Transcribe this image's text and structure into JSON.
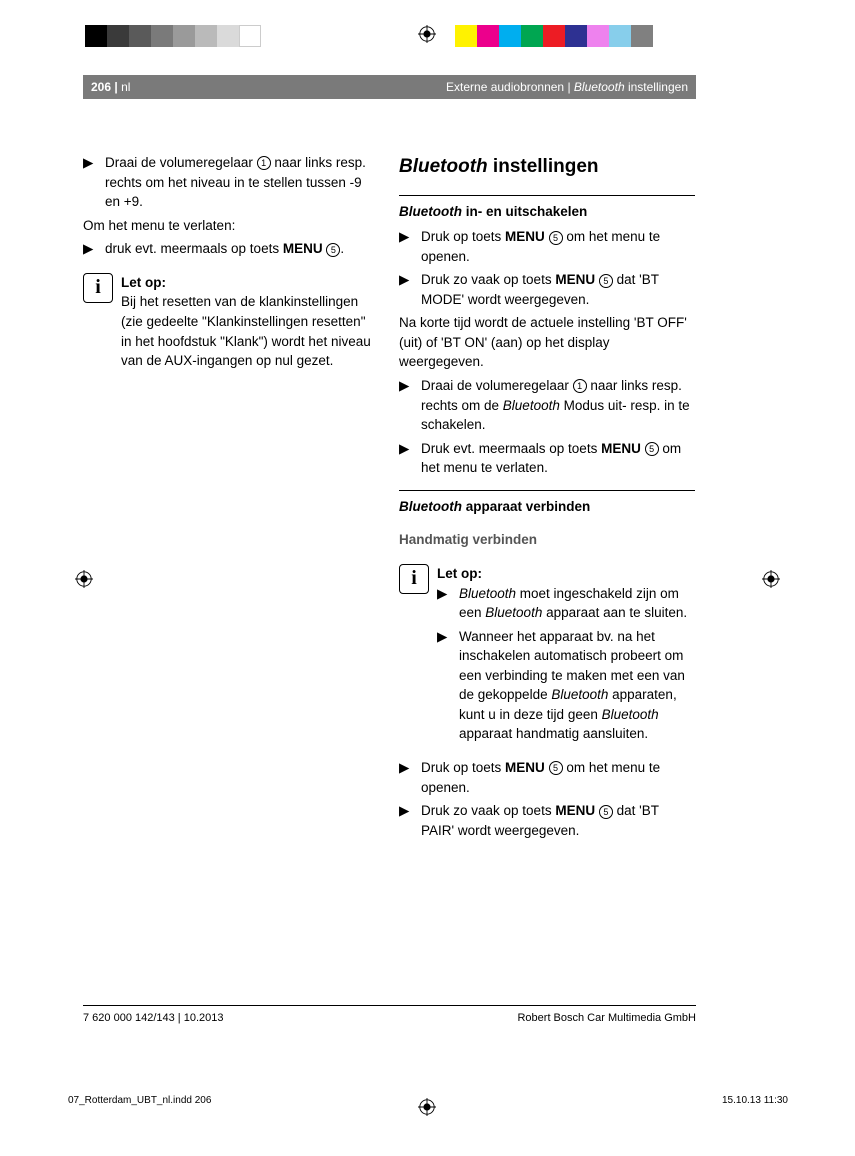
{
  "colorbar_left": [
    "#000000",
    "#3a3a3a",
    "#5a5a5a",
    "#7a7a7a",
    "#9a9a9a",
    "#bababa",
    "#dadada",
    "#ffffff"
  ],
  "colorbar_right": [
    "#fff200",
    "#ec008c",
    "#00aeef",
    "#00a651",
    "#ed1c24",
    "#2e3192",
    "#ee82ee",
    "#87ceeb",
    "#808080"
  ],
  "header": {
    "page_num": "206",
    "lang": "nl",
    "section": "Externe audiobronnen",
    "subsection": "Bluetooth",
    "subsection_suffix": " instellingen"
  },
  "col1": {
    "b1_pre": "Draai de volumeregelaar ",
    "b1_post": " naar links resp. rechts om het niveau in te stellen tussen -9 en +9.",
    "plain1": "Om het menu te verlaten:",
    "b2_pre": "druk evt. meermaals op toets ",
    "b2_bold": "MENU",
    "b2_post": ".",
    "note_head": "Let op:",
    "note_body": "Bij het resetten van de klankinstellingen (zie gedeelte \"Klankinstellingen resetten\" in het hoofdstuk \"Klank\") wordt het niveau van de AUX-ingangen op nul gezet."
  },
  "col2": {
    "title_ital": "Bluetooth",
    "title_rest": " instellingen",
    "sub1_ital": "Bluetooth",
    "sub1_rest": " in- en uitschakelen",
    "s1b1_pre": "Druk op toets ",
    "s1b1_bold": "MENU",
    "s1b1_post": " om het menu te openen.",
    "s1b2_pre": "Druk zo vaak op toets ",
    "s1b2_bold": "MENU",
    "s1b2_post": " dat 'BT MODE' wordt weergegeven.",
    "s1_plain": "Na korte tijd wordt de actuele instelling 'BT OFF' (uit) of 'BT ON' (aan) op het display weergegeven.",
    "s1b3_pre": "Draai de volumeregelaar ",
    "s1b3_mid1": " naar links resp. rechts om de ",
    "s1b3_ital": "Bluetooth",
    "s1b3_mid2": " Modus uit- resp. in te schakelen.",
    "s1b4_pre": "Druk evt. meermaals op toets ",
    "s1b4_bold": "MENU",
    "s1b4_post": " om het menu te verlaten.",
    "sub2_ital": "Bluetooth",
    "sub2_rest": " apparaat verbinden",
    "subsub": "Handmatig verbinden",
    "note_head": "Let op:",
    "n1_ital1": "Bluetooth",
    "n1_mid": " moet ingeschakeld zijn om een ",
    "n1_ital2": "Bluetooth",
    "n1_post": " apparaat aan te sluiten.",
    "n2_pre": "Wanneer het apparaat bv. na het inschakelen automatisch probeert om een verbinding te maken met een van de gekoppelde ",
    "n2_ital1": "Bluetooth",
    "n2_mid": " apparaten, kunt u in deze tijd geen ",
    "n2_ital2": "Bluetooth",
    "n2_post": " apparaat handmatig aansluiten.",
    "s2b1_pre": "Druk op toets ",
    "s2b1_bold": "MENU",
    "s2b1_post": " om het menu te openen.",
    "s2b2_pre": "Druk zo vaak op toets ",
    "s2b2_bold": "MENU",
    "s2b2_post": " dat 'BT PAIR' wordt weergegeven."
  },
  "footer": {
    "left": "7 620 000 142/143 | 10.2013",
    "right": "Robert Bosch Car Multimedia GmbH"
  },
  "indd": {
    "left": "07_Rotterdam_UBT_nl.indd   206",
    "right": "15.10.13   11:30"
  },
  "circles": {
    "c1": "1",
    "c5": "5"
  }
}
